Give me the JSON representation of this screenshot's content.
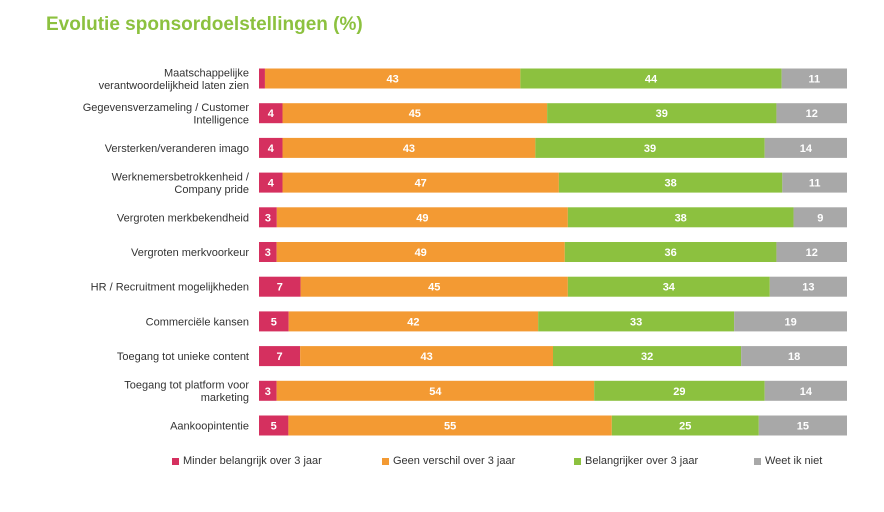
{
  "title": "Evolutie sponsordoelstellingen (%)",
  "chart_data": {
    "type": "bar",
    "orientation": "horizontal",
    "stacked": true,
    "title": "Evolutie sponsordoelstellingen (%)",
    "xlim": [
      0,
      100
    ],
    "legend_position": "bottom",
    "categories": [
      [
        "Maatschappelijke",
        "verantwoordelijkheid laten zien"
      ],
      [
        "Gegevensverzameling / Customer",
        "Intelligence"
      ],
      [
        "Versterken/veranderen imago"
      ],
      [
        "Werknemersbetrokkenheid /",
        "Company pride"
      ],
      [
        "Vergroten merkbekendheid"
      ],
      [
        "Vergroten merkvoorkeur"
      ],
      [
        "HR / Recruitment mogelijkheden"
      ],
      [
        "Commerciële kansen"
      ],
      [
        "Toegang tot unieke content"
      ],
      [
        "Toegang tot platform voor",
        "marketing"
      ],
      [
        "Aankoopintentie"
      ]
    ],
    "series": [
      {
        "name": "Minder belangrijk over 3 jaar",
        "color": "#d5305f",
        "values": [
          1,
          4,
          4,
          4,
          3,
          3,
          7,
          5,
          7,
          3,
          5
        ],
        "labels": [
          "",
          "4",
          "4",
          "4",
          "3",
          "3",
          "7",
          "5",
          "7",
          "3",
          "5"
        ]
      },
      {
        "name": "Geen verschil over 3 jaar",
        "color": "#f39a33",
        "values": [
          43,
          45,
          43,
          47,
          49,
          49,
          45,
          42,
          43,
          54,
          55
        ],
        "labels": [
          "43",
          "45",
          "43",
          "47",
          "49",
          "49",
          "45",
          "42",
          "43",
          "54",
          "55"
        ]
      },
      {
        "name": "Belangrijker over 3 jaar",
        "color": "#8cc13f",
        "values": [
          44,
          39,
          39,
          38,
          38,
          36,
          34,
          33,
          32,
          29,
          25
        ],
        "labels": [
          "44",
          "39",
          "39",
          "38",
          "38",
          "36",
          "34",
          "33",
          "32",
          "29",
          "25"
        ]
      },
      {
        "name": "Weet ik niet",
        "color": "#a8a8a8",
        "values": [
          11,
          12,
          14,
          11,
          9,
          12,
          13,
          19,
          18,
          14,
          15
        ],
        "labels": [
          "11",
          "12",
          "14",
          "11",
          "9",
          "12",
          "13",
          "19",
          "18",
          "14",
          "15"
        ]
      }
    ]
  }
}
